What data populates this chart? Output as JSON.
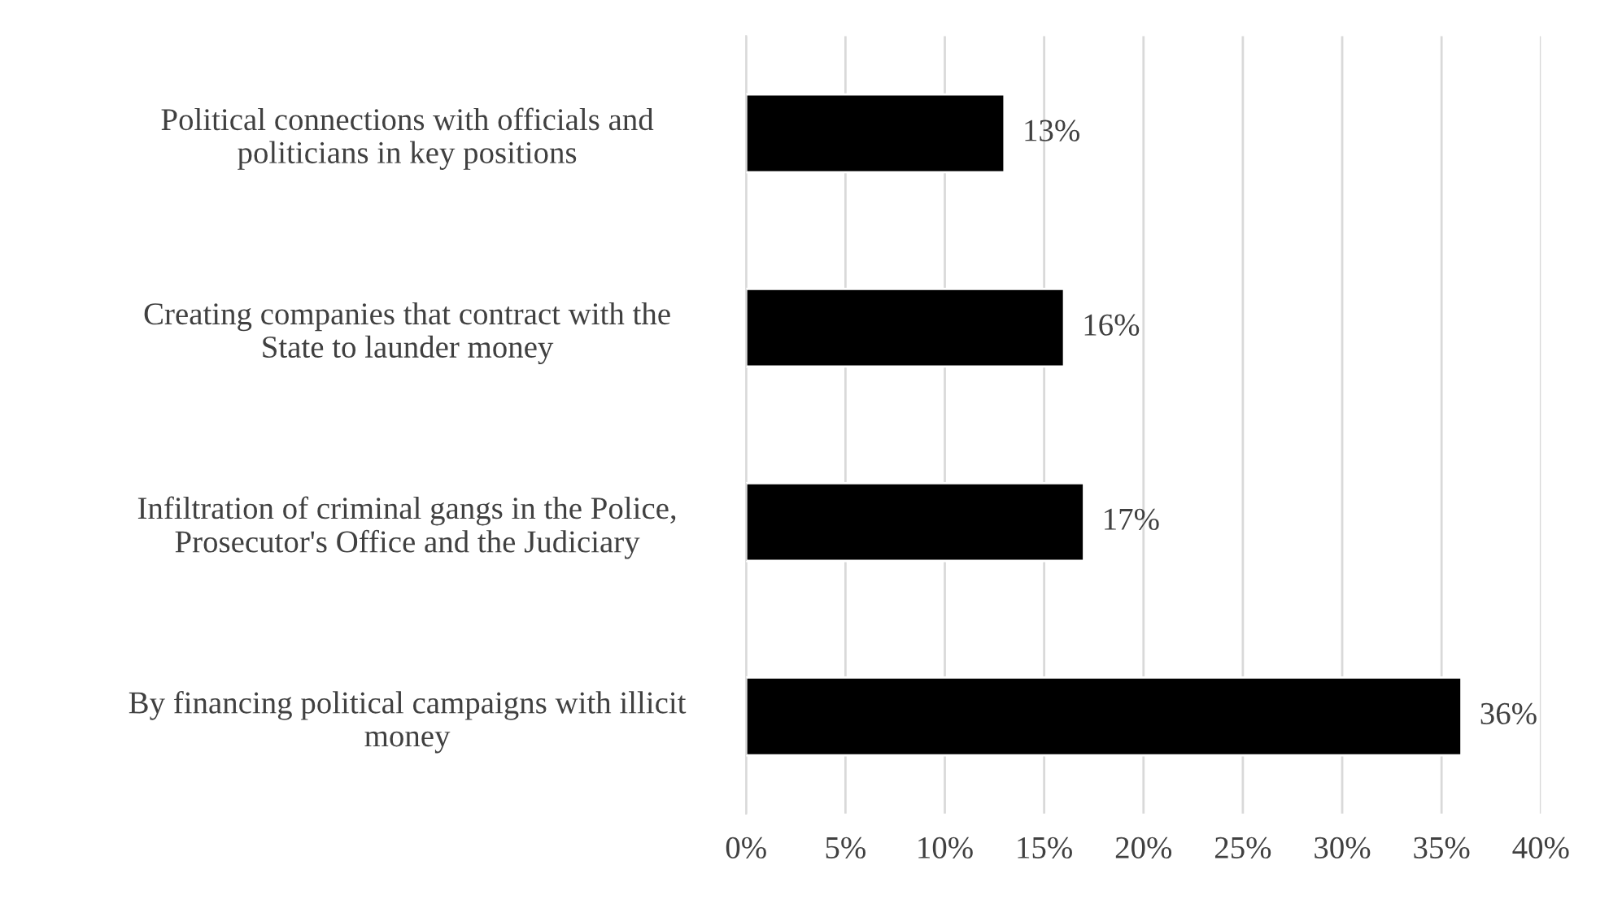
{
  "chart_data": {
    "type": "bar",
    "orientation": "horizontal",
    "categories": [
      "Political connections with officials and\npoliticians in key positions",
      "Creating companies that contract with the\nState to launder money",
      "Infiltration of criminal gangs in the Police,\nProsecutor's Office and the Judiciary",
      "By financing political campaigns with illicit\nmoney"
    ],
    "values": [
      13,
      16,
      17,
      36
    ],
    "color": "#000000",
    "value_labels": [
      "13%",
      "16%",
      "17%",
      "36%"
    ],
    "xlim": [
      0,
      40
    ],
    "xticks": [
      {
        "value": 0,
        "label": "0%"
      },
      {
        "value": 5,
        "label": "5%"
      },
      {
        "value": 10,
        "label": "10%"
      },
      {
        "value": 15,
        "label": "15%"
      },
      {
        "value": 20,
        "label": "20%"
      },
      {
        "value": 25,
        "label": "25%"
      },
      {
        "value": 30,
        "label": "30%"
      },
      {
        "value": 35,
        "label": "35%"
      },
      {
        "value": 40,
        "label": "40%"
      }
    ],
    "grid": "x",
    "legend": false
  }
}
